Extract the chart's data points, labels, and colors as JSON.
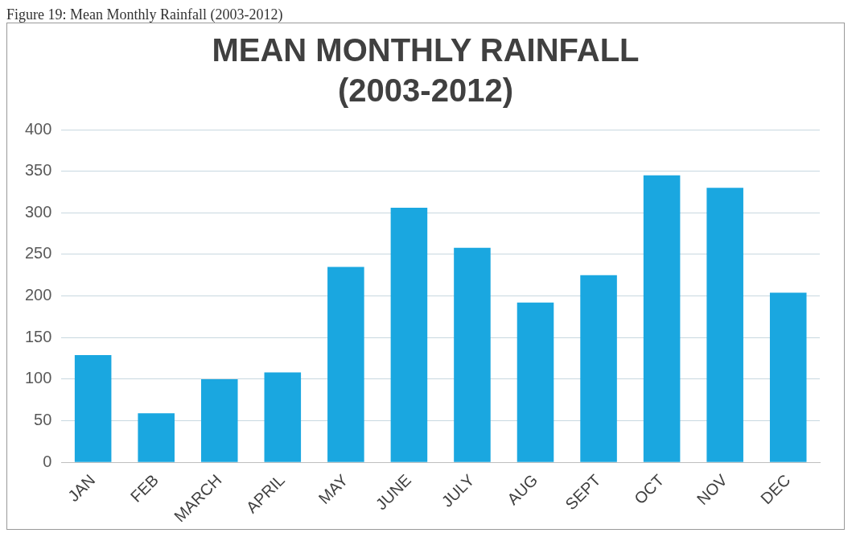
{
  "chart_data": {
    "type": "bar",
    "title": "MEAN MONTHLY RAINFALL (2003-2012)",
    "annotations": [
      "Figure 19: Mean Monthly Rainfall (2003-2012)"
    ],
    "categories": [
      "JAN",
      "FEB",
      "MARCH",
      "APRIL",
      "MAY",
      "JUNE",
      "JULY",
      "AUG",
      "SEPT",
      "OCT",
      "NOV",
      "DEC"
    ],
    "values": [
      129,
      59,
      100,
      108,
      235,
      306,
      258,
      192,
      225,
      345,
      330,
      204
    ],
    "color": "#1aa7e0",
    "ylim": [
      0,
      400
    ],
    "yticks": [
      0,
      50,
      100,
      150,
      200,
      250,
      300,
      350,
      400
    ],
    "grid": "y",
    "legend": false
  }
}
